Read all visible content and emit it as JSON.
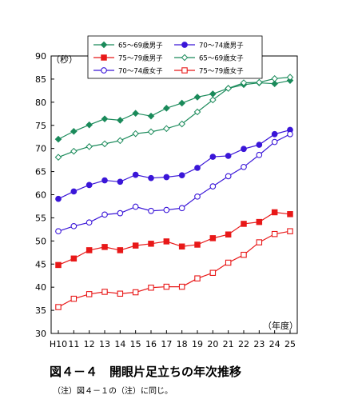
{
  "chart_data": {
    "type": "line",
    "ylabel": "（秒）",
    "xlabel": "（年度）",
    "ylim": [
      30,
      90
    ],
    "yticks": [
      30,
      35,
      40,
      45,
      50,
      55,
      60,
      65,
      70,
      75,
      80,
      85,
      90
    ],
    "x": [
      "H10",
      "11",
      "12",
      "13",
      "14",
      "15",
      "16",
      "17",
      "18",
      "19",
      "20",
      "21",
      "22",
      "23",
      "24",
      "25"
    ],
    "grid": false,
    "legend_position": "top-center",
    "series": [
      {
        "name": "65～69歳男子",
        "color": "#1a8a5a",
        "marker": "diamond",
        "filled": true,
        "values": [
          72.0,
          73.7,
          75.1,
          76.4,
          76.1,
          77.6,
          77.0,
          78.7,
          79.8,
          81.1,
          81.8,
          83.0,
          83.8,
          84.2,
          84.0,
          84.7
        ]
      },
      {
        "name": "70～74歳男子",
        "color": "#3a16d8",
        "marker": "circle",
        "filled": true,
        "values": [
          59.1,
          60.7,
          62.1,
          63.1,
          62.8,
          64.3,
          63.6,
          63.8,
          64.2,
          65.8,
          68.2,
          68.4,
          69.9,
          70.8,
          73.1,
          74.0
        ]
      },
      {
        "name": "75～79歳男子",
        "color": "#e81818",
        "marker": "square",
        "filled": true,
        "values": [
          44.8,
          46.2,
          48.0,
          48.7,
          48.0,
          49.0,
          49.4,
          49.9,
          48.8,
          49.2,
          50.6,
          51.4,
          53.7,
          54.1,
          56.2,
          55.8
        ]
      },
      {
        "name": "65～69歳女子",
        "color": "#1a8a5a",
        "marker": "diamond",
        "filled": false,
        "values": [
          68.1,
          69.4,
          70.4,
          71.0,
          71.7,
          73.2,
          73.6,
          74.3,
          75.3,
          77.9,
          80.5,
          83.0,
          84.2,
          84.3,
          85.1,
          85.4
        ]
      },
      {
        "name": "70～74歳女子",
        "color": "#3a16d8",
        "marker": "circle",
        "filled": false,
        "values": [
          52.1,
          53.2,
          54.0,
          55.7,
          56.0,
          57.4,
          56.5,
          56.7,
          57.1,
          59.6,
          61.8,
          64.0,
          66.0,
          68.6,
          71.4,
          73.1
        ]
      },
      {
        "name": "75～79歳女子",
        "color": "#e81818",
        "marker": "square",
        "filled": false,
        "values": [
          35.7,
          37.5,
          38.5,
          39.0,
          38.6,
          38.9,
          39.9,
          40.1,
          40.1,
          41.9,
          43.1,
          45.3,
          47.0,
          49.7,
          51.5,
          52.1
        ]
      }
    ],
    "legend_order": [
      0,
      1,
      2,
      3,
      4,
      5
    ]
  },
  "caption": "図４－４　開眼片足立ちの年次推移",
  "note": "（注）図４－１の（注）に同じ。"
}
